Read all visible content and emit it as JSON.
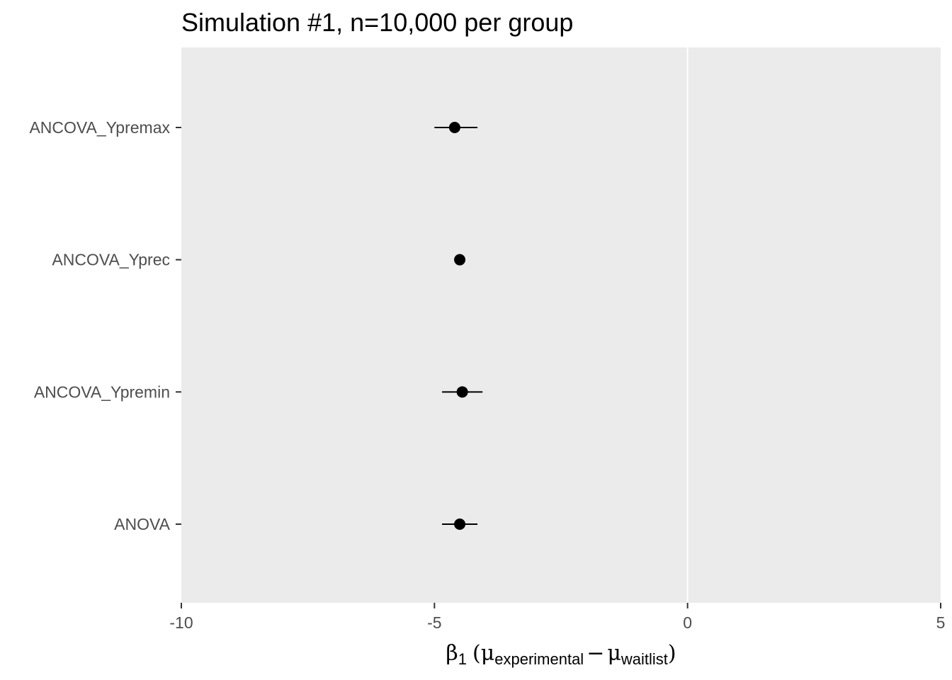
{
  "chart_data": {
    "type": "scatter",
    "title": "Simulation #1, n=10,000 per group",
    "xlabel": {
      "beta": "β",
      "beta_sub": "1",
      "open_paren": "(",
      "mu1": "μ",
      "mu1_sub": "experimental",
      "minus": "−",
      "mu2": "μ",
      "mu2_sub": "waitlist",
      "close_paren": ")"
    },
    "ylabel": "",
    "xlim": [
      -10,
      5
    ],
    "xticks": [
      -10,
      -5,
      0,
      5
    ],
    "xtick_labels": [
      "-10",
      "-5",
      "0",
      "5"
    ],
    "reference_line_x": 0,
    "background": "#ebebeb",
    "point_color": "#000000",
    "categories": [
      "ANCOVA_Ypremax",
      "ANCOVA_Yprec",
      "ANCOVA_Ypremin",
      "ANOVA"
    ],
    "estimates": [
      -4.6,
      -4.5,
      -4.45,
      -4.5
    ],
    "ci_low": [
      -5.0,
      -4.55,
      -4.85,
      -4.85
    ],
    "ci_high": [
      -4.15,
      -4.45,
      -4.05,
      -4.15
    ]
  }
}
